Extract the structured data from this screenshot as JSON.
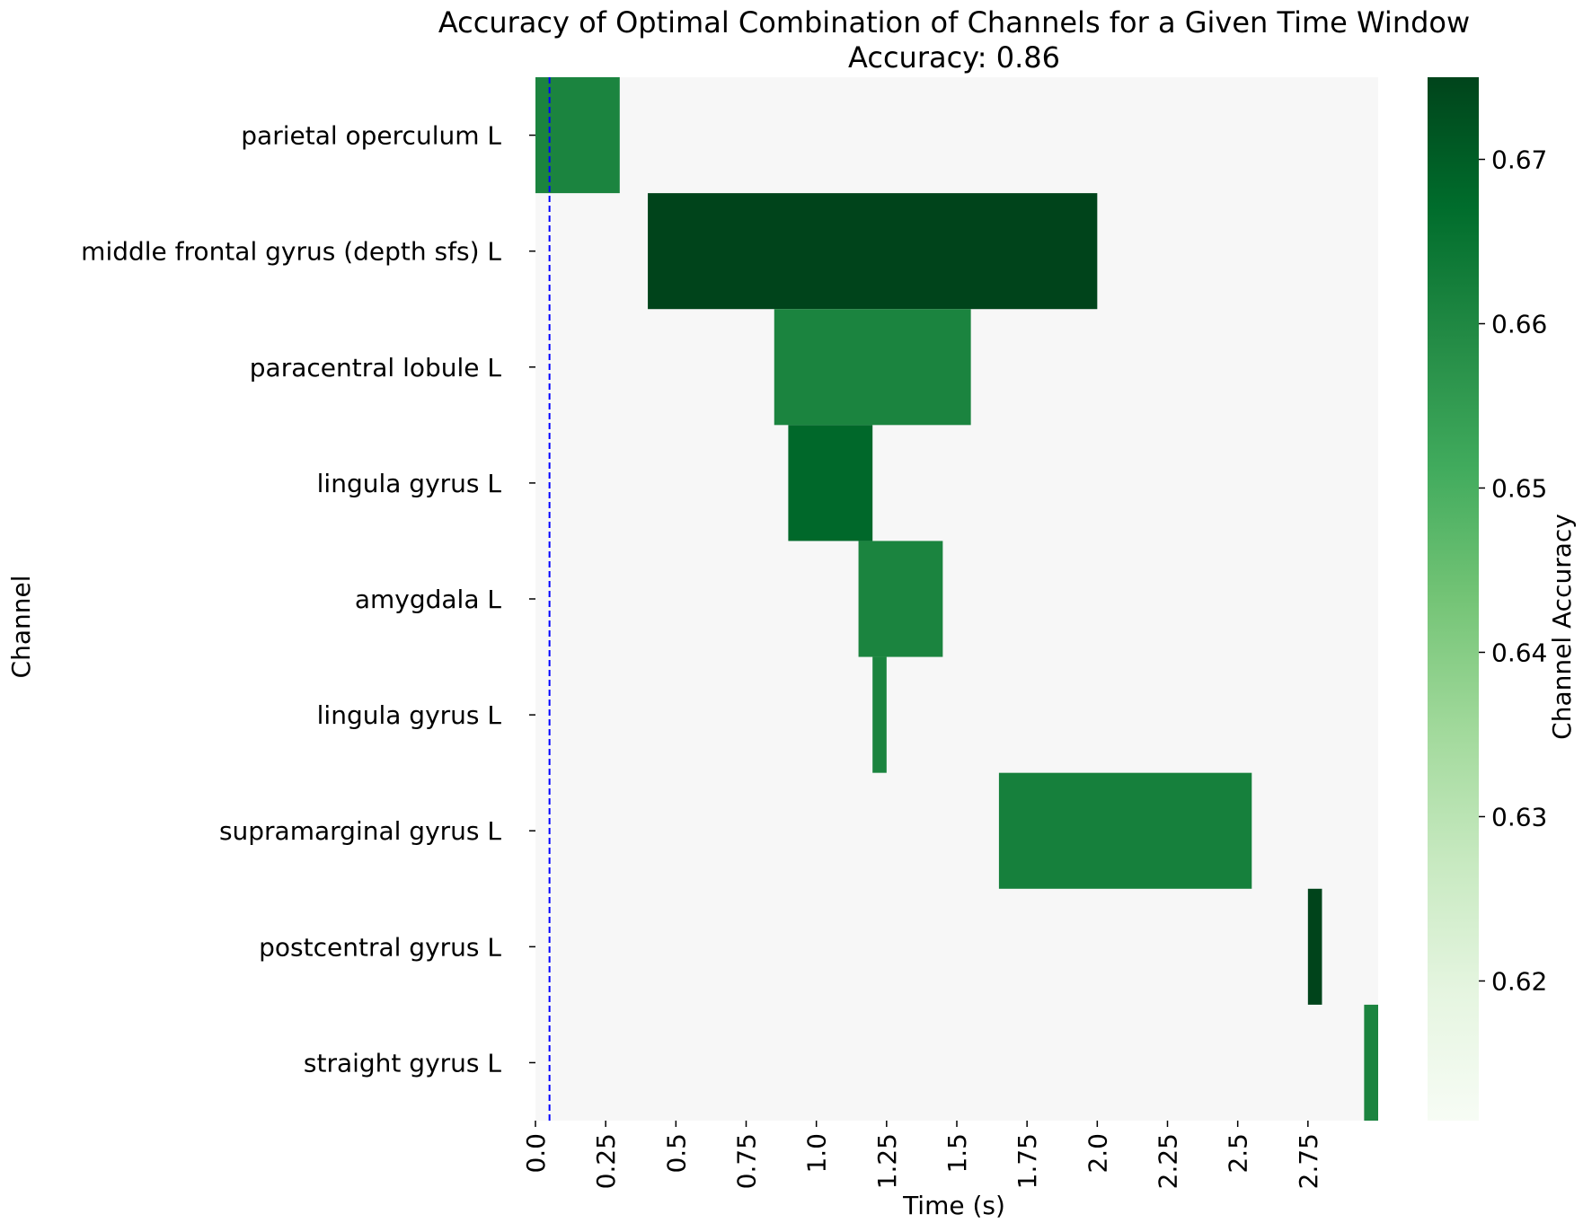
{
  "chart_data": {
    "type": "heatmap",
    "title": "Accuracy of Optimal Combination of Channels for a Given Time Window",
    "subtitle": "Accuracy: 0.86",
    "xlabel": "Time (s)",
    "ylabel": "Channel",
    "colorbar_label": "Channel Accuracy",
    "xlim": [
      0.0,
      3.0
    ],
    "x_ticks": [
      0.0,
      0.25,
      0.5,
      0.75,
      1.0,
      1.25,
      1.5,
      1.75,
      2.0,
      2.25,
      2.5,
      2.75
    ],
    "x_tick_labels": [
      "0.0",
      "0.25",
      "0.5",
      "0.75",
      "1.0",
      "1.25",
      "1.5",
      "1.75",
      "2.0",
      "2.25",
      "2.5",
      "2.75"
    ],
    "channels": [
      "parietal operculum L",
      "middle frontal gyrus (depth sfs) L",
      "paracentral lobule L",
      "lingula gyrus L",
      "amygdala L",
      "lingula gyrus L",
      "supramarginal gyrus L",
      "postcentral gyrus L",
      "straight gyrus L"
    ],
    "windows": [
      {
        "channel_index": 0,
        "start": 0.0,
        "end": 0.3,
        "accuracy": 0.661
      },
      {
        "channel_index": 1,
        "start": 0.4,
        "end": 2.0,
        "accuracy": 0.675
      },
      {
        "channel_index": 2,
        "start": 0.85,
        "end": 1.55,
        "accuracy": 0.661
      },
      {
        "channel_index": 3,
        "start": 0.9,
        "end": 1.2,
        "accuracy": 0.668
      },
      {
        "channel_index": 4,
        "start": 1.15,
        "end": 1.45,
        "accuracy": 0.661
      },
      {
        "channel_index": 5,
        "start": 1.2,
        "end": 1.25,
        "accuracy": 0.661
      },
      {
        "channel_index": 6,
        "start": 1.65,
        "end": 2.55,
        "accuracy": 0.662
      },
      {
        "channel_index": 7,
        "start": 2.75,
        "end": 2.8,
        "accuracy": 0.675
      },
      {
        "channel_index": 8,
        "start": 2.95,
        "end": 3.0,
        "accuracy": 0.661
      }
    ],
    "background_color": "#f7f7f7",
    "colormap": "Greens",
    "colorbar_range": [
      0.6115,
      0.675
    ],
    "colorbar_ticks": [
      0.62,
      0.63,
      0.64,
      0.65,
      0.66,
      0.67
    ],
    "colorbar_tick_labels": [
      "0.62",
      "0.63",
      "0.64",
      "0.65",
      "0.66",
      "0.67"
    ],
    "vline": {
      "x": 0.05,
      "style": "dashed",
      "color": "#0000ff"
    },
    "grid": false
  }
}
